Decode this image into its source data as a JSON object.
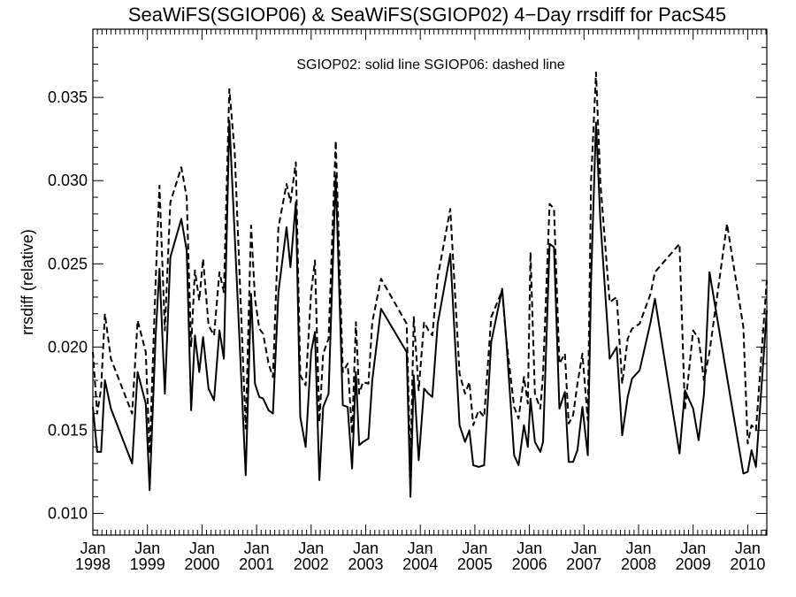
{
  "chart_data": {
    "type": "line",
    "title": "SeaWiFS(SGIOP06) & SeaWiFS(SGIOP02) 4−Day rrsdiff for PacS45",
    "ylabel": "rrsdiff (relative)",
    "xlabel": "",
    "legend_text": "SGIOP02: solid line   SGIOP06: dashed line",
    "xlim": [
      1998.0,
      2010.35
    ],
    "ylim": [
      0.0087,
      0.0391
    ],
    "yticks": [
      0.01,
      0.015,
      0.02,
      0.025,
      0.03,
      0.035
    ],
    "ytick_labels": [
      "0.010",
      "0.015",
      "0.020",
      "0.025",
      "0.030",
      "0.035"
    ],
    "xticks": [
      {
        "month": "Jan",
        "year": "1998"
      },
      {
        "month": "Jan",
        "year": "1999"
      },
      {
        "month": "Jan",
        "year": "2000"
      },
      {
        "month": "Jan",
        "year": "2001"
      },
      {
        "month": "Jan",
        "year": "2002"
      },
      {
        "month": "Jan",
        "year": "2003"
      },
      {
        "month": "Jan",
        "year": "2004"
      },
      {
        "month": "Jan",
        "year": "2005"
      },
      {
        "month": "Jan",
        "year": "2006"
      },
      {
        "month": "Jan",
        "year": "2007"
      },
      {
        "month": "Jan",
        "year": "2008"
      },
      {
        "month": "Jan",
        "year": "2009"
      },
      {
        "month": "Jan",
        "year": "2010"
      }
    ],
    "grid": false,
    "series": [
      {
        "name": "SGIOP02",
        "style": "solid",
        "x": [
          1998.0,
          1998.08,
          1998.15,
          1998.22,
          1998.33,
          1998.72,
          1998.82,
          1998.97,
          1999.04,
          1999.15,
          1999.22,
          1999.32,
          1999.42,
          1999.62,
          1999.72,
          1999.8,
          1999.87,
          1999.95,
          2000.02,
          2000.12,
          2000.22,
          2000.32,
          2000.4,
          2000.5,
          2000.6,
          2000.8,
          2000.9,
          2000.97,
          2001.05,
          2001.12,
          2001.22,
          2001.3,
          2001.4,
          2001.55,
          2001.62,
          2001.72,
          2001.8,
          2001.9,
          2002.0,
          2002.07,
          2002.15,
          2002.22,
          2002.32,
          2002.45,
          2002.58,
          2002.67,
          2002.75,
          2002.82,
          2002.88,
          2002.95,
          2003.05,
          2003.12,
          2003.28,
          2003.75,
          2003.82,
          2003.88,
          2003.97,
          2004.07,
          2004.15,
          2004.22,
          2004.32,
          2004.55,
          2004.72,
          2004.82,
          2004.9,
          2004.97,
          2005.07,
          2005.17,
          2005.3,
          2005.5,
          2005.57,
          2005.72,
          2005.8,
          2005.9,
          2005.97,
          2006.02,
          2006.1,
          2006.2,
          2006.25,
          2006.37,
          2006.45,
          2006.55,
          2006.65,
          2006.72,
          2006.8,
          2006.88,
          2006.97,
          2007.07,
          2007.13,
          2007.22,
          2007.3,
          2007.47,
          2007.6,
          2007.7,
          2007.8,
          2007.88,
          2008.02,
          2008.22,
          2008.3,
          2008.75,
          2008.85,
          2009.0,
          2009.1,
          2009.2,
          2009.3,
          2009.62,
          2009.92,
          2010.0,
          2010.07,
          2010.15,
          2010.35
        ],
        "values": [
          0.0164,
          0.0137,
          0.0137,
          0.018,
          0.0163,
          0.013,
          0.0185,
          0.0166,
          0.0114,
          0.0207,
          0.0247,
          0.0172,
          0.0254,
          0.0277,
          0.0258,
          0.0162,
          0.0207,
          0.0185,
          0.0206,
          0.0175,
          0.0168,
          0.021,
          0.0193,
          0.0336,
          0.0267,
          0.0123,
          0.0232,
          0.0178,
          0.017,
          0.0169,
          0.0162,
          0.016,
          0.0233,
          0.0272,
          0.0248,
          0.0287,
          0.0158,
          0.014,
          0.0197,
          0.0209,
          0.012,
          0.0164,
          0.0172,
          0.0303,
          0.0165,
          0.0164,
          0.0127,
          0.0185,
          0.0141,
          0.0143,
          0.0145,
          0.018,
          0.0223,
          0.0197,
          0.011,
          0.0183,
          0.0132,
          0.0175,
          0.0172,
          0.017,
          0.0214,
          0.0256,
          0.0153,
          0.0143,
          0.015,
          0.0129,
          0.0128,
          0.0129,
          0.0203,
          0.0235,
          0.0207,
          0.0135,
          0.0129,
          0.0153,
          0.014,
          0.0169,
          0.0143,
          0.0137,
          0.0143,
          0.0262,
          0.026,
          0.0163,
          0.0173,
          0.0131,
          0.0131,
          0.0138,
          0.0164,
          0.0135,
          0.024,
          0.0335,
          0.0276,
          0.0193,
          0.02,
          0.0147,
          0.017,
          0.0181,
          0.0186,
          0.0215,
          0.0229,
          0.0136,
          0.0174,
          0.0163,
          0.0144,
          0.0172,
          0.0245,
          0.0182,
          0.0124,
          0.0125,
          0.0138,
          0.0128,
          0.0222
        ]
      },
      {
        "name": "SGIOP06",
        "style": "dashed",
        "x": [
          1998.0,
          1998.08,
          1998.15,
          1998.22,
          1998.33,
          1998.72,
          1998.82,
          1998.97,
          1999.04,
          1999.15,
          1999.22,
          1999.32,
          1999.42,
          1999.62,
          1999.72,
          1999.8,
          1999.87,
          1999.95,
          2000.02,
          2000.12,
          2000.22,
          2000.32,
          2000.4,
          2000.5,
          2000.6,
          2000.8,
          2000.9,
          2000.97,
          2001.05,
          2001.12,
          2001.22,
          2001.3,
          2001.4,
          2001.55,
          2001.62,
          2001.72,
          2001.8,
          2001.9,
          2002.0,
          2002.07,
          2002.15,
          2002.22,
          2002.32,
          2002.45,
          2002.58,
          2002.67,
          2002.75,
          2002.82,
          2002.88,
          2002.95,
          2003.05,
          2003.12,
          2003.28,
          2003.75,
          2003.82,
          2003.88,
          2003.97,
          2004.07,
          2004.15,
          2004.22,
          2004.32,
          2004.55,
          2004.72,
          2004.82,
          2004.9,
          2004.97,
          2005.07,
          2005.17,
          2005.3,
          2005.5,
          2005.57,
          2005.72,
          2005.8,
          2005.9,
          2005.97,
          2006.02,
          2006.1,
          2006.2,
          2006.25,
          2006.37,
          2006.45,
          2006.55,
          2006.65,
          2006.72,
          2006.8,
          2006.88,
          2006.97,
          2007.07,
          2007.13,
          2007.22,
          2007.3,
          2007.47,
          2007.6,
          2007.7,
          2007.8,
          2007.88,
          2008.02,
          2008.22,
          2008.3,
          2008.75,
          2008.85,
          2009.0,
          2009.1,
          2009.2,
          2009.3,
          2009.62,
          2009.92,
          2010.0,
          2010.07,
          2010.15,
          2010.35
        ],
        "values": [
          0.0197,
          0.016,
          0.0175,
          0.022,
          0.0193,
          0.016,
          0.0216,
          0.0197,
          0.0136,
          0.024,
          0.0297,
          0.021,
          0.0287,
          0.0308,
          0.029,
          0.02,
          0.0246,
          0.0228,
          0.0253,
          0.0213,
          0.0207,
          0.0245,
          0.0233,
          0.0355,
          0.0317,
          0.0151,
          0.0273,
          0.0229,
          0.0211,
          0.0208,
          0.019,
          0.0182,
          0.0272,
          0.0298,
          0.0287,
          0.0311,
          0.0183,
          0.0177,
          0.0233,
          0.0252,
          0.0155,
          0.0196,
          0.0205,
          0.0324,
          0.0185,
          0.019,
          0.0148,
          0.0215,
          0.0172,
          0.0179,
          0.0178,
          0.0215,
          0.0241,
          0.0214,
          0.0127,
          0.0218,
          0.0174,
          0.0215,
          0.021,
          0.0207,
          0.0242,
          0.0283,
          0.0184,
          0.0172,
          0.0179,
          0.0153,
          0.0162,
          0.0158,
          0.0218,
          0.0234,
          0.0206,
          0.0164,
          0.0157,
          0.0182,
          0.0166,
          0.0257,
          0.0172,
          0.0163,
          0.0184,
          0.0286,
          0.0283,
          0.019,
          0.0196,
          0.0154,
          0.0159,
          0.0178,
          0.0196,
          0.0156,
          0.03,
          0.0365,
          0.0299,
          0.0227,
          0.023,
          0.0178,
          0.0205,
          0.0211,
          0.0214,
          0.0232,
          0.0245,
          0.0262,
          0.0162,
          0.021,
          0.0205,
          0.018,
          0.0197,
          0.0274,
          0.0212,
          0.0142,
          0.0153,
          0.015,
          0.024
        ]
      }
    ]
  }
}
